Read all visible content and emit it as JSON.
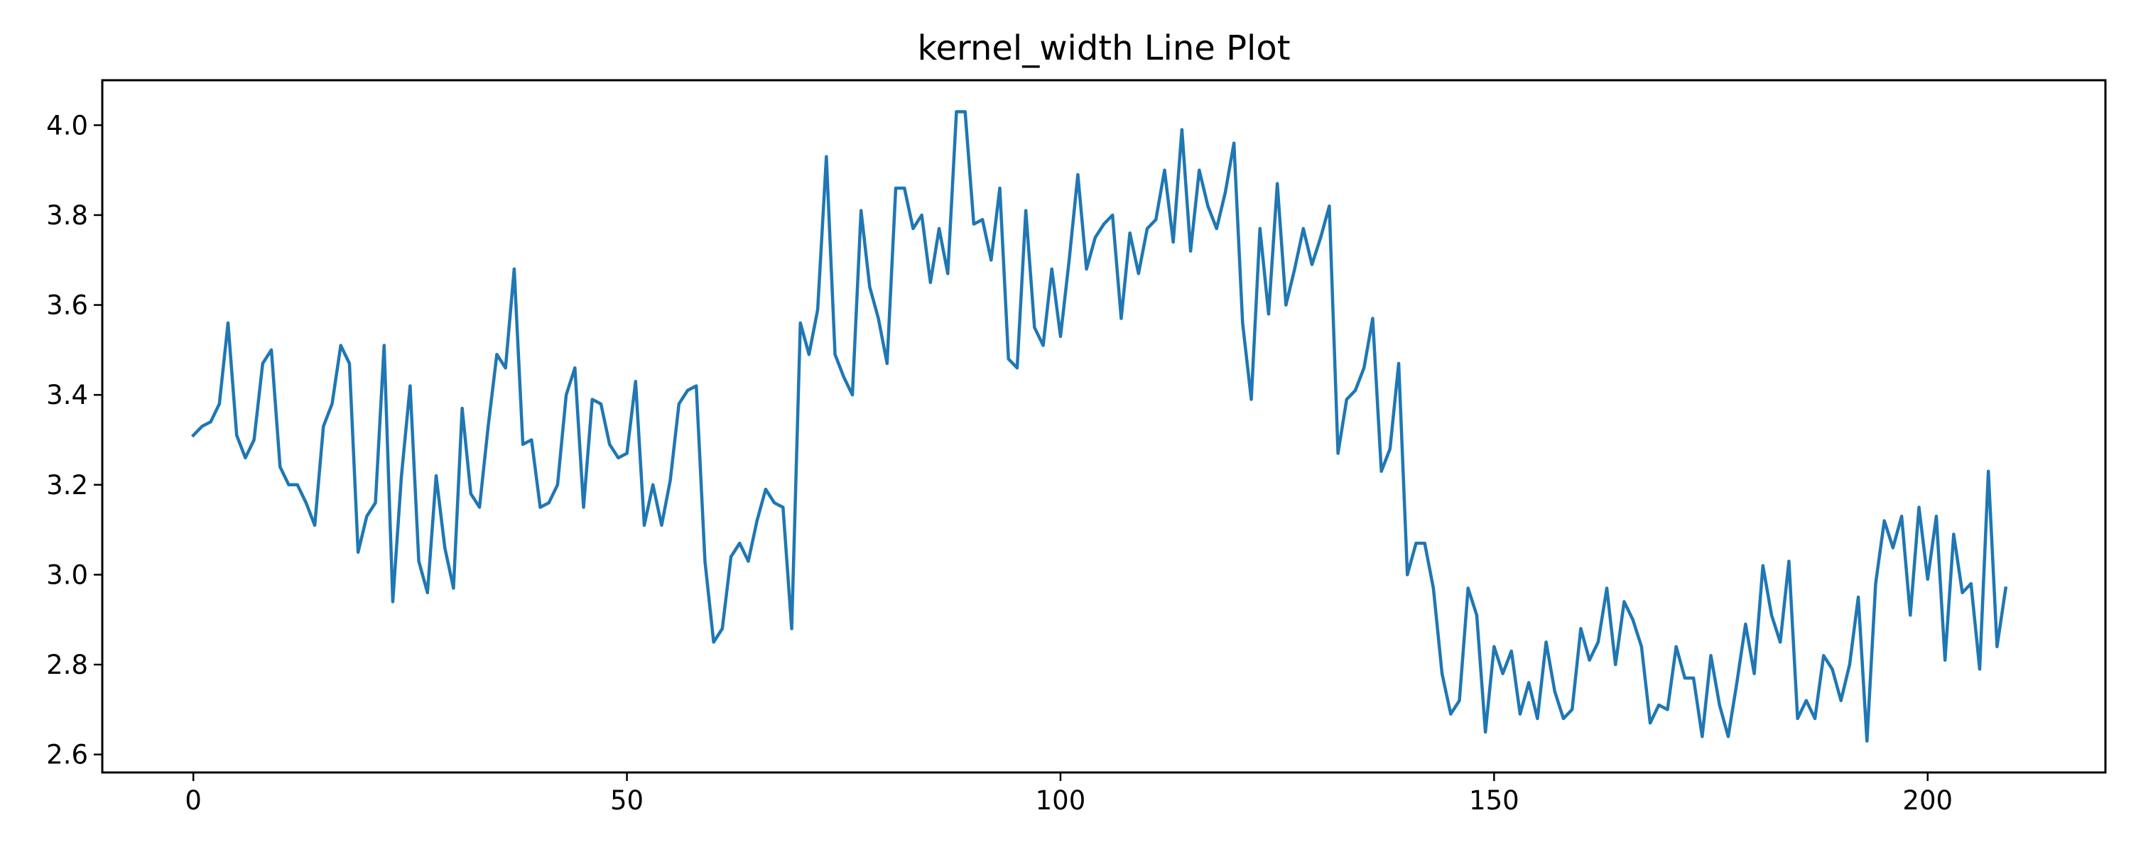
{
  "chart_data": {
    "type": "line",
    "title": "kernel_width Line Plot",
    "xlabel": "",
    "ylabel": "",
    "xlim": [
      -10.5,
      220.5
    ],
    "ylim": [
      2.56,
      4.1
    ],
    "x_ticks": [
      0,
      50,
      100,
      150,
      200
    ],
    "y_ticks": [
      2.6,
      2.8,
      3.0,
      3.2,
      3.4,
      3.6,
      3.8,
      4.0
    ],
    "y_tick_labels": [
      "2.6",
      "2.8",
      "3.0",
      "3.2",
      "3.4",
      "3.6",
      "3.8",
      "4.0"
    ],
    "grid": false,
    "legend": "none",
    "color": "#1f77b4",
    "series": [
      {
        "values": [
          3.31,
          3.33,
          3.34,
          3.38,
          3.56,
          3.31,
          3.26,
          3.3,
          3.47,
          3.5,
          3.24,
          3.2,
          3.2,
          3.16,
          3.11,
          3.33,
          3.38,
          3.51,
          3.47,
          3.05,
          3.13,
          3.16,
          3.51,
          2.94,
          3.22,
          3.42,
          3.03,
          2.96,
          3.22,
          3.06,
          2.97,
          3.37,
          3.18,
          3.15,
          3.33,
          3.49,
          3.46,
          3.68,
          3.29,
          3.3,
          3.15,
          3.16,
          3.2,
          3.4,
          3.46,
          3.15,
          3.39,
          3.38,
          3.29,
          3.26,
          3.27,
          3.43,
          3.11,
          3.2,
          3.11,
          3.21,
          3.38,
          3.41,
          3.42,
          3.03,
          2.85,
          2.88,
          3.04,
          3.07,
          3.03,
          3.12,
          3.19,
          3.16,
          3.15,
          2.88,
          3.56,
          3.49,
          3.59,
          3.93,
          3.49,
          3.44,
          3.4,
          3.81,
          3.64,
          3.57,
          3.47,
          3.86,
          3.86,
          3.77,
          3.8,
          3.65,
          3.77,
          3.67,
          4.03,
          4.03,
          3.78,
          3.79,
          3.7,
          3.86,
          3.48,
          3.46,
          3.81,
          3.55,
          3.51,
          3.68,
          3.53,
          3.7,
          3.89,
          3.68,
          3.75,
          3.78,
          3.8,
          3.57,
          3.76,
          3.67,
          3.77,
          3.79,
          3.9,
          3.74,
          3.99,
          3.72,
          3.9,
          3.82,
          3.77,
          3.85,
          3.96,
          3.56,
          3.39,
          3.77,
          3.58,
          3.87,
          3.6,
          3.68,
          3.77,
          3.69,
          3.75,
          3.82,
          3.27,
          3.39,
          3.41,
          3.46,
          3.57,
          3.23,
          3.28,
          3.47,
          3.0,
          3.07,
          3.07,
          2.97,
          2.78,
          2.69,
          2.72,
          2.97,
          2.91,
          2.65,
          2.84,
          2.78,
          2.83,
          2.69,
          2.76,
          2.68,
          2.85,
          2.74,
          2.68,
          2.7,
          2.88,
          2.81,
          2.85,
          2.97,
          2.8,
          2.94,
          2.9,
          2.84,
          2.67,
          2.71,
          2.7,
          2.84,
          2.77,
          2.77,
          2.64,
          2.82,
          2.71,
          2.64,
          2.76,
          2.89,
          2.78,
          3.02,
          2.91,
          2.85,
          3.03,
          2.68,
          2.72,
          2.68,
          2.82,
          2.79,
          2.72,
          2.8,
          2.95,
          2.63,
          2.98,
          3.12,
          3.06,
          3.13,
          2.91,
          3.15,
          2.99,
          3.13,
          2.81,
          3.09,
          2.96,
          2.98,
          2.79,
          3.23,
          2.84,
          2.97
        ]
      }
    ]
  }
}
